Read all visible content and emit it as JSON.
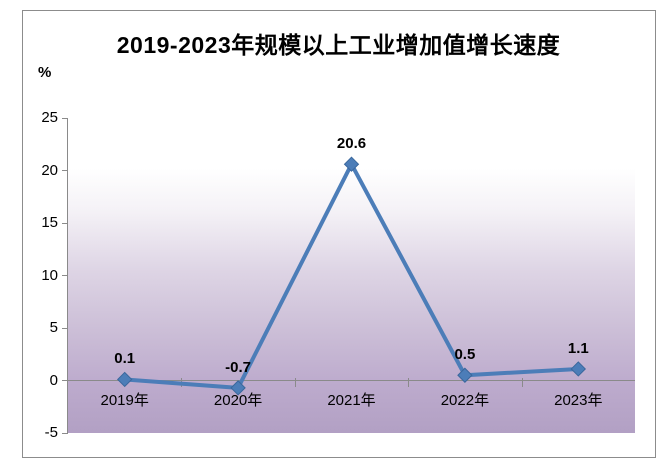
{
  "chart_data": {
    "type": "line",
    "title": "2019-2023年规模以上工业增加值增长速度",
    "unit_label": "%",
    "categories": [
      "2019年",
      "2020年",
      "2021年",
      "2022年",
      "2023年"
    ],
    "values": [
      0.1,
      -0.7,
      20.6,
      0.5,
      1.1
    ],
    "data_labels": [
      "0.1",
      "-0.7",
      "20.6",
      "0.5",
      "1.1"
    ],
    "series_name": "规模以上工业增加值增长速度",
    "xlabel": "",
    "ylabel": "%",
    "ylim": [
      -5,
      25
    ],
    "ytick_interval": 5,
    "yticks": [
      25,
      20,
      15,
      10,
      5,
      0,
      -5
    ],
    "grid": false,
    "legend_position": "none",
    "colors": {
      "line": "#4c7db8",
      "marker_fill": "#4c7db8",
      "marker_edge": "#3a679c",
      "axis": "#8a8a8a",
      "text": "#000000",
      "plot_gradient_top": "#ffffff",
      "plot_gradient_bottom": "#b2a0c4",
      "frame_border": "#8c8c8c"
    }
  }
}
